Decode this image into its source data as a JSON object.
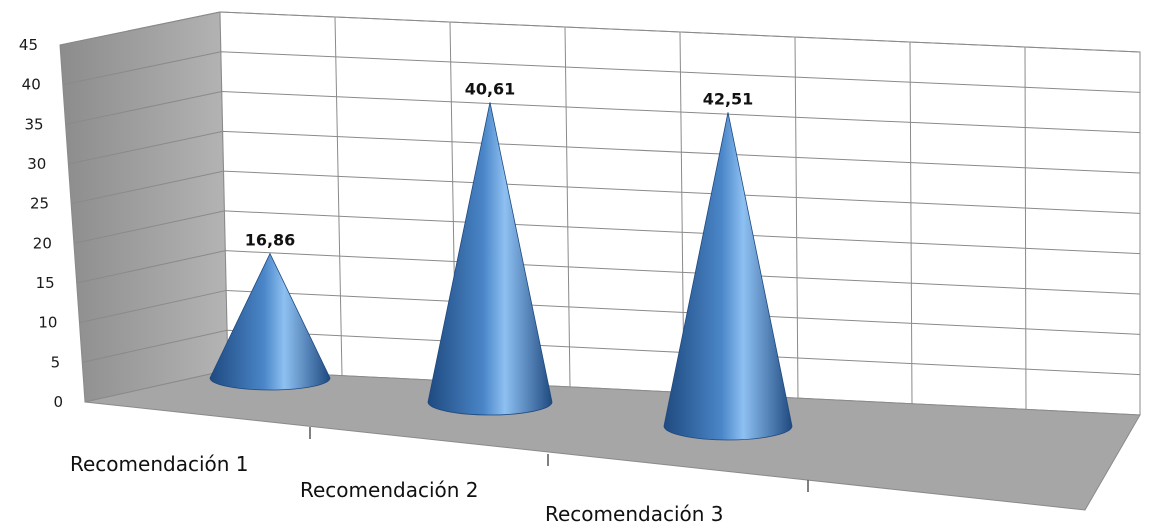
{
  "chart_data": {
    "type": "bar",
    "shape": "cone",
    "categories": [
      "Recomendación 1",
      "Recomendación 2",
      "Recomendación 3"
    ],
    "values": [
      16.86,
      40.61,
      42.51
    ],
    "value_labels": [
      "16,86",
      "40,61",
      "42,51"
    ],
    "y_ticks": [
      "0",
      "5",
      "10",
      "15",
      "20",
      "25",
      "30",
      "35",
      "40",
      "45"
    ],
    "ylim": [
      0,
      45
    ],
    "grid": true,
    "legend": "none",
    "colors": {
      "cone_dark": "#1f4a80",
      "cone_mid": "#4a86c8",
      "cone_light": "#8ec0f2",
      "wall": "#ffffff",
      "side_wall": "#a9a9a9",
      "floor": "#a6a6a6",
      "grid": "#8a8a8a"
    }
  }
}
